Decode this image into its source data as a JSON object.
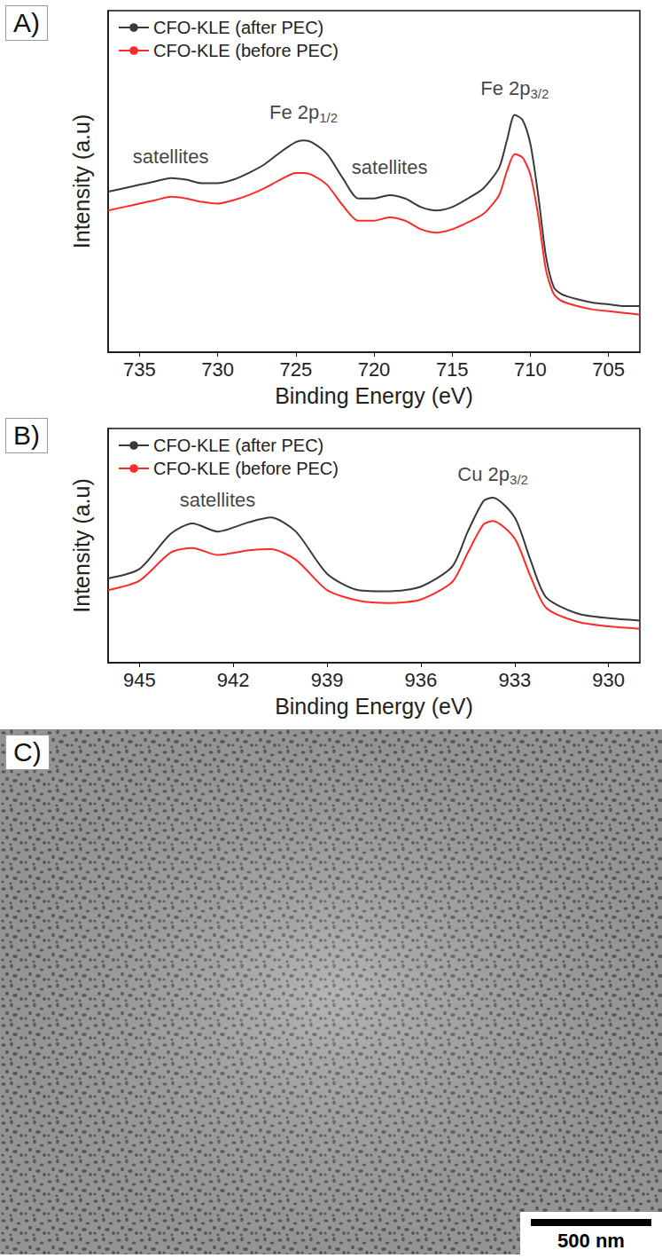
{
  "chart_data": [
    {
      "panel_label": "A)",
      "type": "line",
      "x_label": "Binding Energy (eV)",
      "y_label": "Intensity (a.u)",
      "xlim": [
        737,
        703
      ],
      "xticks": [
        735,
        730,
        725,
        720,
        715,
        710,
        705
      ],
      "ylim": [
        0,
        100
      ],
      "yticks": [],
      "tick_labels": "x",
      "grid": false,
      "legend": "upper left",
      "x": [
        737,
        736,
        735,
        734,
        733,
        732,
        731,
        730,
        729,
        728,
        727,
        726,
        725,
        724.5,
        724,
        723,
        722,
        721,
        720,
        719,
        718,
        717,
        716,
        715,
        714,
        713,
        712,
        711.5,
        711,
        710.5,
        710,
        709.5,
        709,
        708.5,
        708,
        707,
        706,
        705,
        704,
        703
      ],
      "series": [
        {
          "name": "CFO-KLE (after PEC)",
          "color": "#3a3a3a",
          "values": [
            47,
            48,
            49,
            50,
            51,
            50.5,
            49.5,
            49.5,
            50.5,
            52.5,
            55,
            58.5,
            61.5,
            62,
            61.5,
            58,
            51,
            45,
            45,
            46,
            45,
            42.5,
            41.5,
            42.5,
            45,
            48,
            54,
            62,
            69.5,
            68,
            61,
            46,
            28,
            19,
            17,
            15.5,
            14.5,
            14,
            13.5,
            13.5
          ]
        },
        {
          "name": "CFO-KLE (before PEC)",
          "color": "#ff2b2b",
          "values": [
            41.5,
            42.5,
            43.5,
            44.5,
            45.5,
            45,
            44,
            43.5,
            44.5,
            46,
            48,
            50.5,
            52.5,
            52.5,
            52,
            49,
            43,
            38.5,
            38.5,
            39.5,
            38.5,
            36,
            35,
            36,
            38,
            40.5,
            46,
            53,
            58,
            57,
            52,
            40,
            24,
            17,
            15,
            13.5,
            12.5,
            12,
            11.5,
            11
          ]
        }
      ],
      "annotations": [
        {
          "text": "satellites",
          "x": 733,
          "y": 57
        },
        {
          "text": "Fe 2p",
          "subscript": "1/2",
          "x": 724.5,
          "y": 70
        },
        {
          "text": "satellites",
          "x": 719,
          "y": 54
        },
        {
          "text": "Fe 2p",
          "subscript": "3/2",
          "x": 711,
          "y": 77
        }
      ]
    },
    {
      "panel_label": "B)",
      "type": "line",
      "x_label": "Binding Energy (eV)",
      "y_label": "Intensity (a.u)",
      "xlim": [
        946,
        929
      ],
      "xticks": [
        945,
        942,
        939,
        936,
        933,
        930
      ],
      "ylim": [
        0,
        100
      ],
      "yticks": [],
      "tick_labels": "x",
      "grid": false,
      "legend": "upper left",
      "x": [
        946,
        945,
        944,
        943.3,
        942.5,
        941.5,
        940.8,
        940,
        939,
        938,
        937,
        936,
        935,
        934.5,
        934,
        933.7,
        933,
        932.5,
        932,
        931,
        930,
        929
      ],
      "series": [
        {
          "name": "CFO-KLE (after PEC)",
          "color": "#3a3a3a",
          "values": [
            36,
            40,
            55,
            59.5,
            56,
            60,
            62,
            56,
            38,
            31,
            30.5,
            32.5,
            41,
            56,
            69,
            70.5,
            62,
            44,
            28,
            21,
            19,
            18
          ]
        },
        {
          "name": "CFO-KLE (before PEC)",
          "color": "#ff2b2b",
          "values": [
            31,
            35,
            47,
            49,
            46,
            48,
            48.5,
            44,
            31,
            26.5,
            25.5,
            27,
            34.5,
            47,
            59,
            60.5,
            53,
            37,
            23.5,
            17.5,
            15.5,
            14.5
          ]
        }
      ],
      "annotations": [
        {
          "text": "satellites",
          "x": 942.5,
          "y": 69
        },
        {
          "text": "Cu 2p",
          "subscript": "3/2",
          "x": 933.7,
          "y": 80
        }
      ]
    }
  ],
  "image": {
    "panel_label": "C)",
    "scale_bar": "500 nm"
  }
}
